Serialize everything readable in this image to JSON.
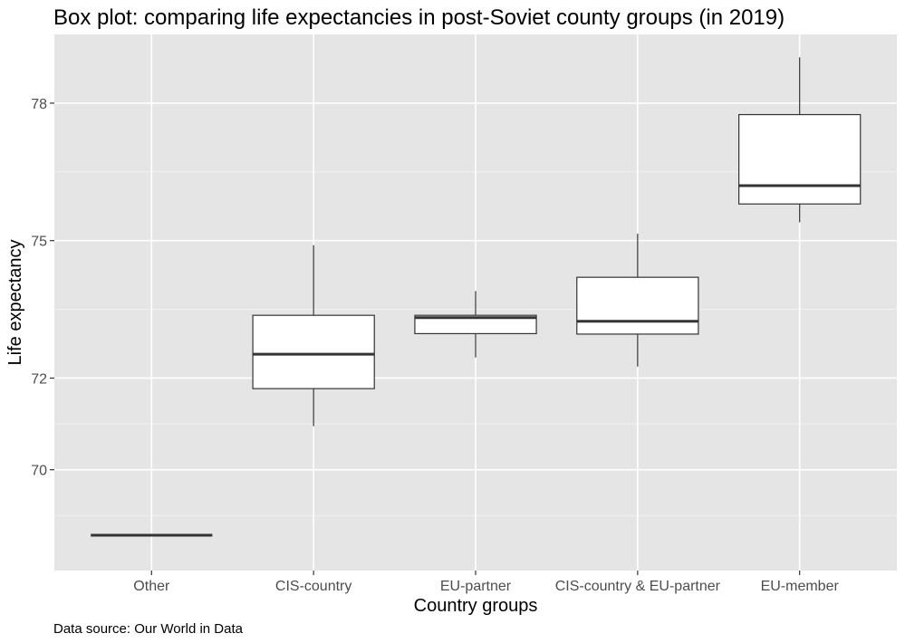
{
  "chart_data": {
    "type": "box",
    "title": "Box plot: comparing life expectancies in post-Soviet county groups (in 2019)",
    "xlabel": "Country groups",
    "ylabel": "Life expectancy",
    "caption": "Data source: Our World in Data",
    "ylim": [
      67.8,
      79.5
    ],
    "yticks": [
      70,
      72,
      75,
      78
    ],
    "grid": true,
    "categories": [
      "Other",
      "CIS-country",
      "EU-partner",
      "CIS-country & EU-partner",
      "EU-member"
    ],
    "boxes": [
      {
        "category": "Other",
        "min": 68.57,
        "q1": 68.57,
        "median": 68.57,
        "q3": 68.57,
        "max": 68.57
      },
      {
        "category": "CIS-country",
        "min": 70.95,
        "q1": 71.77,
        "median": 72.52,
        "q3": 73.37,
        "max": 74.9
      },
      {
        "category": "EU-partner",
        "min": 72.45,
        "q1": 72.97,
        "median": 73.32,
        "q3": 73.37,
        "max": 73.9
      },
      {
        "category": "CIS-country & EU-partner",
        "min": 72.25,
        "q1": 72.96,
        "median": 73.24,
        "q3": 74.2,
        "max": 75.15
      },
      {
        "category": "EU-member",
        "min": 75.4,
        "q1": 75.8,
        "median": 76.2,
        "q3": 77.75,
        "max": 79.0
      }
    ]
  }
}
